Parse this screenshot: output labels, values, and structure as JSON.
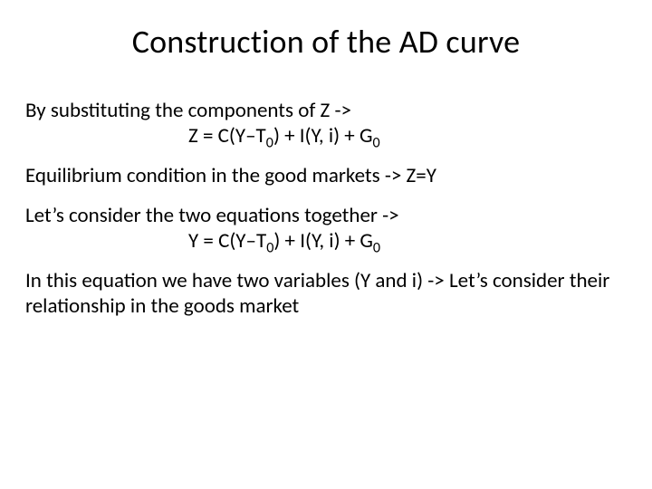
{
  "title": "Construction of the AD curve",
  "p1_intro": "By substituting the components of Z ->",
  "p1_eq_pre": "Z = C(Y",
  "p1_eq_dash": "–",
  "p1_eq_T": "T",
  "p1_eq_sub0a": "0",
  "p1_eq_mid": ") + I(Y, i) + G",
  "p1_eq_sub0b": "0",
  "p2": "Equilibrium condition in the good markets -> Z=Y",
  "p3_intro": "Let’s consider the two equations together ->",
  "p3_eq_pre": "Y = C(Y",
  "p3_eq_dash": "–",
  "p3_eq_T": "T",
  "p3_eq_sub0a": "0",
  "p3_eq_mid": ") + I(Y, i) + G",
  "p3_eq_sub0b": "0",
  "p4": "In this equation we have two variables (Y and i) -> Let’s consider their relationship in the goods market"
}
